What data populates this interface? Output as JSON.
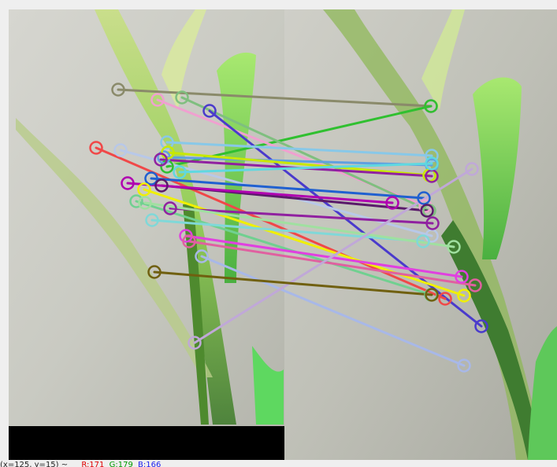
{
  "status": {
    "coords": "(x=125, y=15) ~",
    "r": "R:171",
    "g": "G:179",
    "b": "B:166"
  },
  "matches": [
    {
      "color": "#8a8a6a",
      "a": [
        150,
        114
      ],
      "b": [
        547,
        135
      ]
    },
    {
      "color": "#30c030",
      "a": [
        212,
        212
      ],
      "b": [
        547,
        135
      ]
    },
    {
      "color": "#f0a0d0",
      "a": [
        200,
        127
      ],
      "b": [
        540,
        262
      ]
    },
    {
      "color": "#7fbf7f",
      "a": [
        231,
        124
      ],
      "b": [
        545,
        268
      ]
    },
    {
      "color": "#4a3acc",
      "a": [
        266,
        141
      ],
      "b": [
        611,
        415
      ]
    },
    {
      "color": "#f04848",
      "a": [
        122,
        188
      ],
      "b": [
        565,
        380
      ]
    },
    {
      "color": "#b8c8e8",
      "a": [
        153,
        191
      ],
      "b": [
        548,
        300
      ]
    },
    {
      "color": "#88c8e8",
      "a": [
        212,
        181
      ],
      "b": [
        548,
        198
      ]
    },
    {
      "color": "#60a0e0",
      "a": [
        208,
        200
      ],
      "b": [
        548,
        210
      ]
    },
    {
      "color": "#c8e800",
      "a": [
        213,
        194
      ],
      "b": [
        545,
        223
      ]
    },
    {
      "color": "#9020a0",
      "a": [
        204,
        203
      ],
      "b": [
        548,
        224
      ]
    },
    {
      "color": "#60d8e0",
      "a": [
        228,
        219
      ],
      "b": [
        548,
        208
      ]
    },
    {
      "color": "#2060d0",
      "a": [
        192,
        227
      ],
      "b": [
        538,
        252
      ]
    },
    {
      "color": "#5a1a6a",
      "a": [
        205,
        236
      ],
      "b": [
        542,
        268
      ]
    },
    {
      "color": "#b000b0",
      "a": [
        162,
        233
      ],
      "b": [
        498,
        258
      ]
    },
    {
      "color": "#f0f000",
      "a": [
        183,
        241
      ],
      "b": [
        589,
        376
      ]
    },
    {
      "color": "#70d090",
      "a": [
        173,
        256
      ],
      "b": [
        547,
        375
      ]
    },
    {
      "color": "#9020a0",
      "a": [
        216,
        265
      ],
      "b": [
        549,
        284
      ]
    },
    {
      "color": "#80d8d8",
      "a": [
        193,
        280
      ],
      "b": [
        537,
        307
      ]
    },
    {
      "color": "#a0e0a0",
      "a": [
        184,
        258
      ],
      "b": [
        576,
        314
      ]
    },
    {
      "color": "#e040e0",
      "a": [
        236,
        300
      ],
      "b": [
        586,
        352
      ]
    },
    {
      "color": "#e060a0",
      "a": [
        240,
        307
      ],
      "b": [
        603,
        363
      ]
    },
    {
      "color": "#a8b8e8",
      "a": [
        256,
        326
      ],
      "b": [
        589,
        465
      ]
    },
    {
      "color": "#c0a8d8",
      "a": [
        247,
        436
      ],
      "b": [
        599,
        215
      ]
    },
    {
      "color": "#706010",
      "a": [
        196,
        346
      ],
      "b": [
        548,
        375
      ]
    }
  ]
}
